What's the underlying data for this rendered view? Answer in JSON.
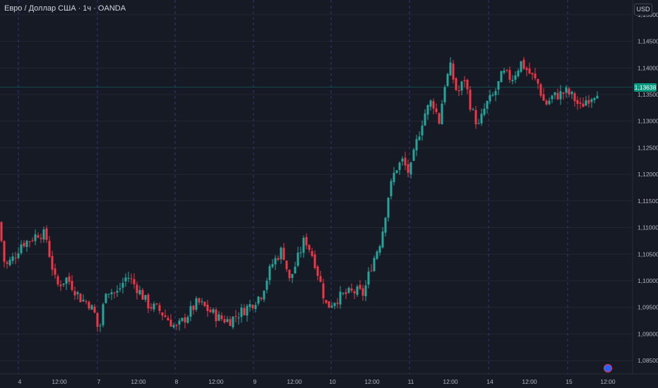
{
  "header": {
    "title": "Евро / Доллар США · 1ч · OANDA",
    "currency": "USD"
  },
  "price_tag": "1,13638",
  "colors": {
    "background": "#161a25",
    "up": "#26a69a",
    "down": "#f23645",
    "grid": "#232733",
    "session": "#2a3a7a"
  },
  "icons": {
    "alert": "alert-marker-icon"
  },
  "chart_data": {
    "type": "candlestick",
    "title": "Евро / Доллар США · 1ч · OANDA",
    "y_axis": {
      "ticks": [
        "1,15000",
        "1,14500",
        "1,14000",
        "1,13500",
        "1,13000",
        "1,12500",
        "1,12000",
        "1,11500",
        "1,11000",
        "1,10500",
        "1,10000",
        "1,09500",
        "1,09000",
        "1,08500"
      ],
      "range": [
        1.0825,
        1.1525
      ]
    },
    "x_axis": {
      "ticks": [
        "4",
        "12:00",
        "7",
        "12:00",
        "8",
        "12:00",
        "9",
        "12:00",
        "10",
        "12:00",
        "11",
        "12:00",
        "14",
        "12:00",
        "15",
        "12:00"
      ]
    },
    "session_breaks": [
      "4",
      "7",
      "8",
      "9",
      "10",
      "11",
      "14",
      "15"
    ],
    "last_price": 1.13638,
    "close_path": [
      [
        0,
        1.111
      ],
      [
        4,
        1.104
      ],
      [
        10,
        1.103
      ],
      [
        20,
        1.1045
      ],
      [
        30,
        1.107
      ],
      [
        40,
        1.1075
      ],
      [
        55,
        1.109
      ],
      [
        65,
        1.1085
      ],
      [
        70,
        1.105
      ],
      [
        80,
        1.099
      ],
      [
        95,
        1.1005
      ],
      [
        105,
        1.0985
      ],
      [
        115,
        1.0965
      ],
      [
        125,
        1.096
      ],
      [
        135,
        1.0935
      ],
      [
        140,
        1.09
      ],
      [
        150,
        1.0985
      ],
      [
        165,
        1.0975
      ],
      [
        180,
        1.101
      ],
      [
        195,
        1.0985
      ],
      [
        210,
        1.0955
      ],
      [
        225,
        1.0945
      ],
      [
        240,
        1.0925
      ],
      [
        250,
        1.091
      ],
      [
        265,
        1.0935
      ],
      [
        280,
        1.096
      ],
      [
        295,
        1.0945
      ],
      [
        310,
        1.093
      ],
      [
        325,
        1.0925
      ],
      [
        340,
        1.094
      ],
      [
        355,
        1.0955
      ],
      [
        370,
        1.0975
      ],
      [
        385,
        1.103
      ],
      [
        400,
        1.106
      ],
      [
        410,
        1.1
      ],
      [
        420,
        1.1035
      ],
      [
        432,
        1.108
      ],
      [
        445,
        1.104
      ],
      [
        455,
        1.099
      ],
      [
        463,
        1.095
      ],
      [
        475,
        1.0965
      ],
      [
        490,
        1.0975
      ],
      [
        505,
        1.098
      ],
      [
        515,
        1.0975
      ],
      [
        525,
        1.1025
      ],
      [
        540,
        1.108
      ],
      [
        550,
        1.116
      ],
      [
        560,
        1.121
      ],
      [
        570,
        1.1225
      ],
      [
        580,
        1.12
      ],
      [
        590,
        1.126
      ],
      [
        600,
        1.131
      ],
      [
        612,
        1.134
      ],
      [
        622,
        1.13
      ],
      [
        630,
        1.137
      ],
      [
        638,
        1.14
      ],
      [
        648,
        1.135
      ],
      [
        658,
        1.138
      ],
      [
        668,
        1.132
      ],
      [
        678,
        1.129
      ],
      [
        688,
        1.133
      ],
      [
        700,
        1.135
      ],
      [
        712,
        1.139
      ],
      [
        725,
        1.138
      ],
      [
        738,
        1.141
      ],
      [
        750,
        1.139
      ],
      [
        762,
        1.137
      ],
      [
        772,
        1.133
      ],
      [
        782,
        1.1345
      ],
      [
        792,
        1.135
      ],
      [
        802,
        1.1355
      ],
      [
        812,
        1.1345
      ],
      [
        822,
        1.1325
      ],
      [
        830,
        1.134
      ],
      [
        840,
        1.135
      ],
      [
        850,
        1.1364
      ]
    ]
  }
}
